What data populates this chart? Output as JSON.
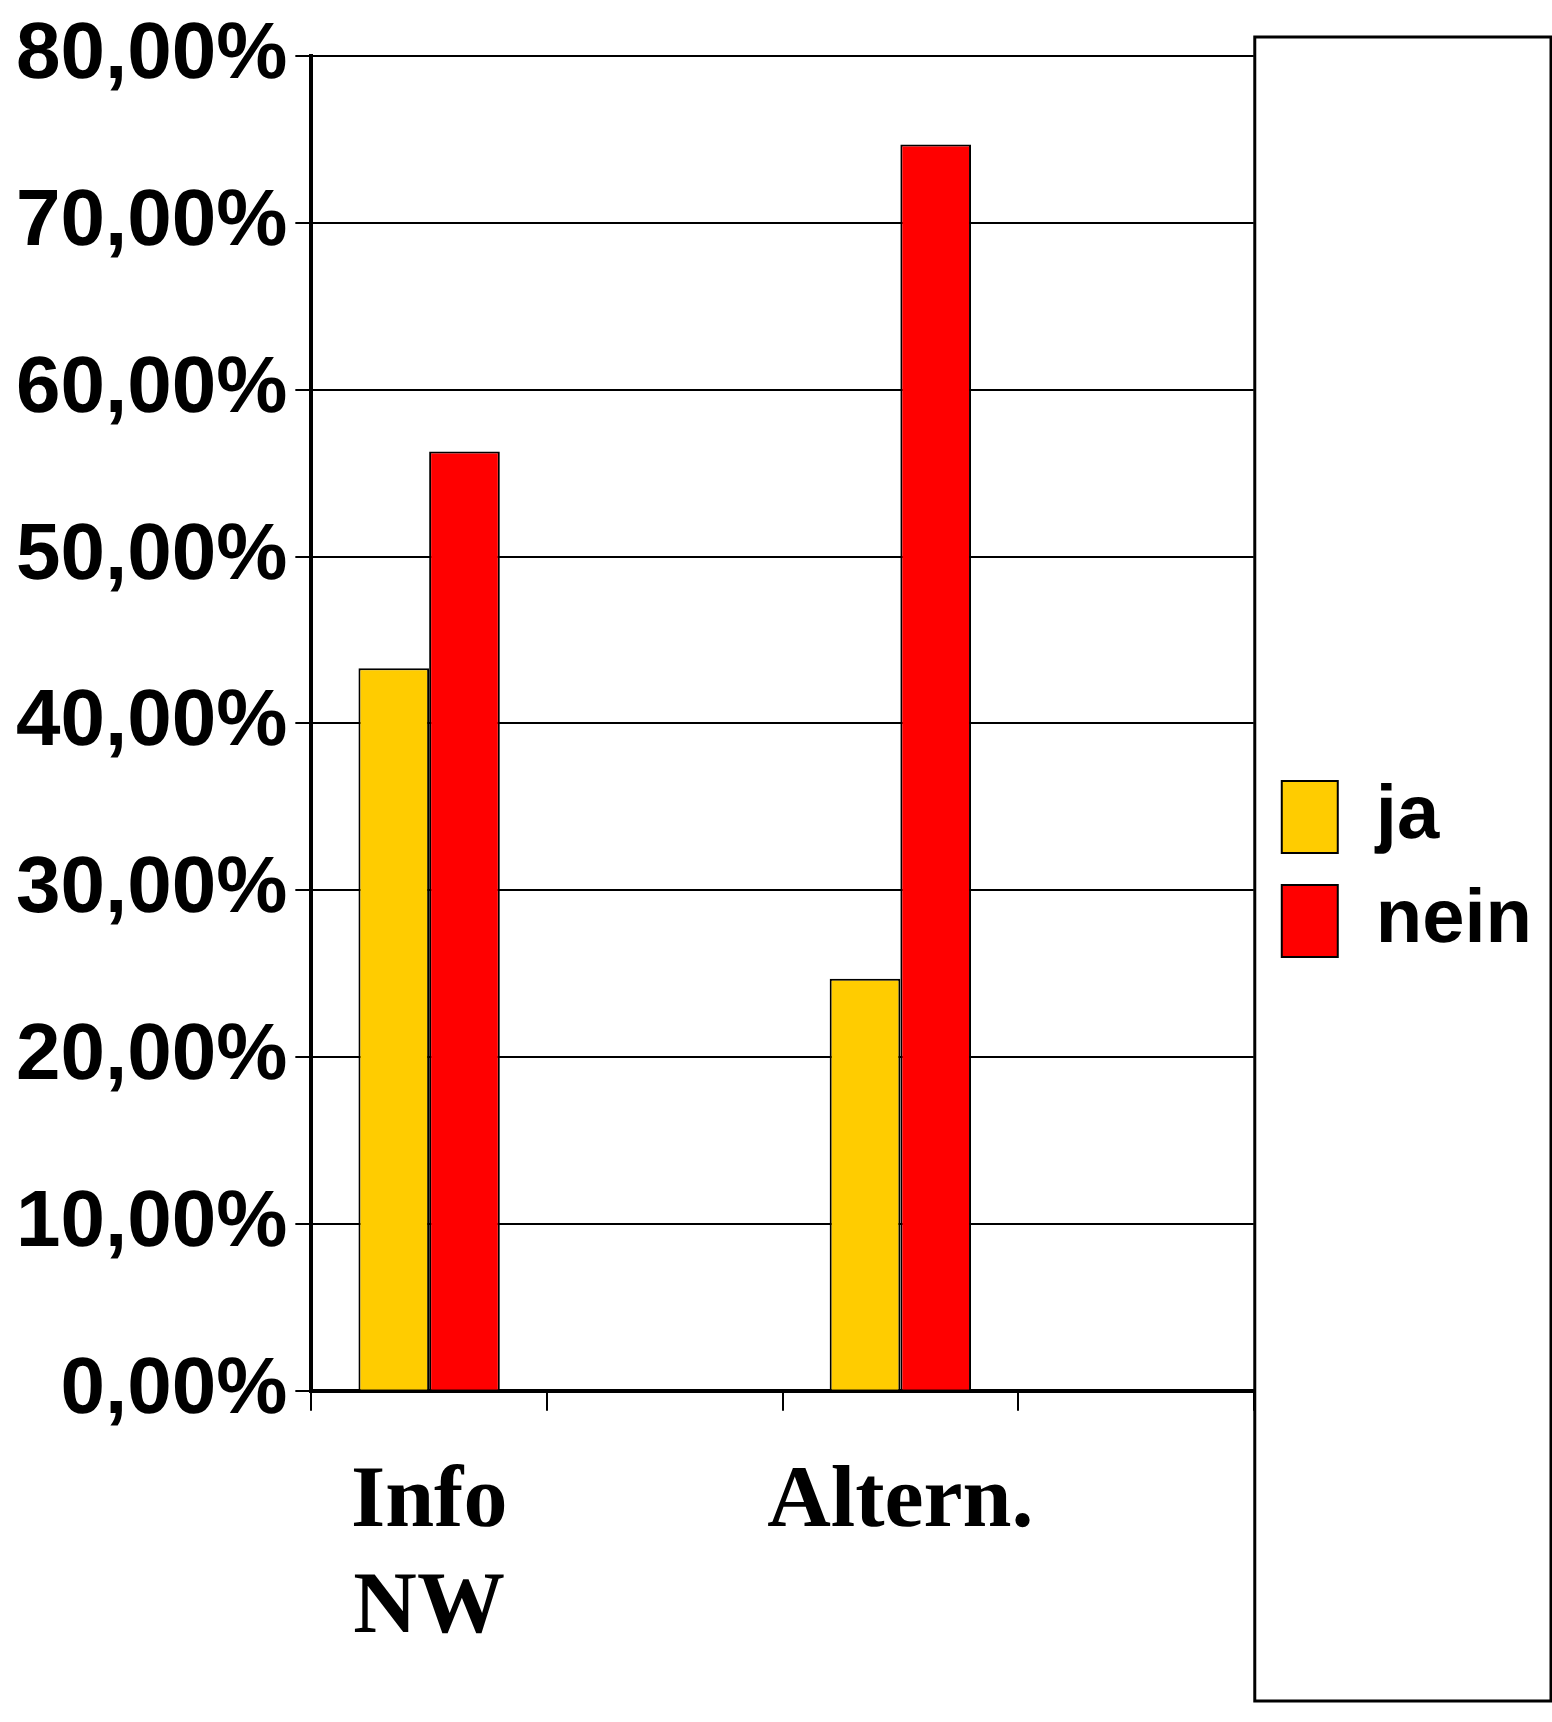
{
  "chart_data": {
    "type": "bar",
    "categories": [
      "Info NW",
      null,
      "Altern.",
      null
    ],
    "series": [
      {
        "name": "ja",
        "color": "#ffcc00",
        "values": [
          43.3,
          null,
          24.7,
          null
        ]
      },
      {
        "name": "nein",
        "color": "#ff0000",
        "values": [
          56.3,
          null,
          74.7,
          null
        ]
      }
    ],
    "ylim": [
      0,
      80
    ],
    "yticks": [
      {
        "value": 0,
        "label": "0,00%"
      },
      {
        "value": 10,
        "label": "10,00%"
      },
      {
        "value": 20,
        "label": "20,00%"
      },
      {
        "value": 30,
        "label": "30,00%"
      },
      {
        "value": 40,
        "label": "40,00%"
      },
      {
        "value": 50,
        "label": "50,00%"
      },
      {
        "value": 60,
        "label": "60,00%"
      },
      {
        "value": 70,
        "label": "70,00%"
      },
      {
        "value": 80,
        "label": "80,00%"
      }
    ],
    "grid": "y",
    "legend": "right"
  }
}
